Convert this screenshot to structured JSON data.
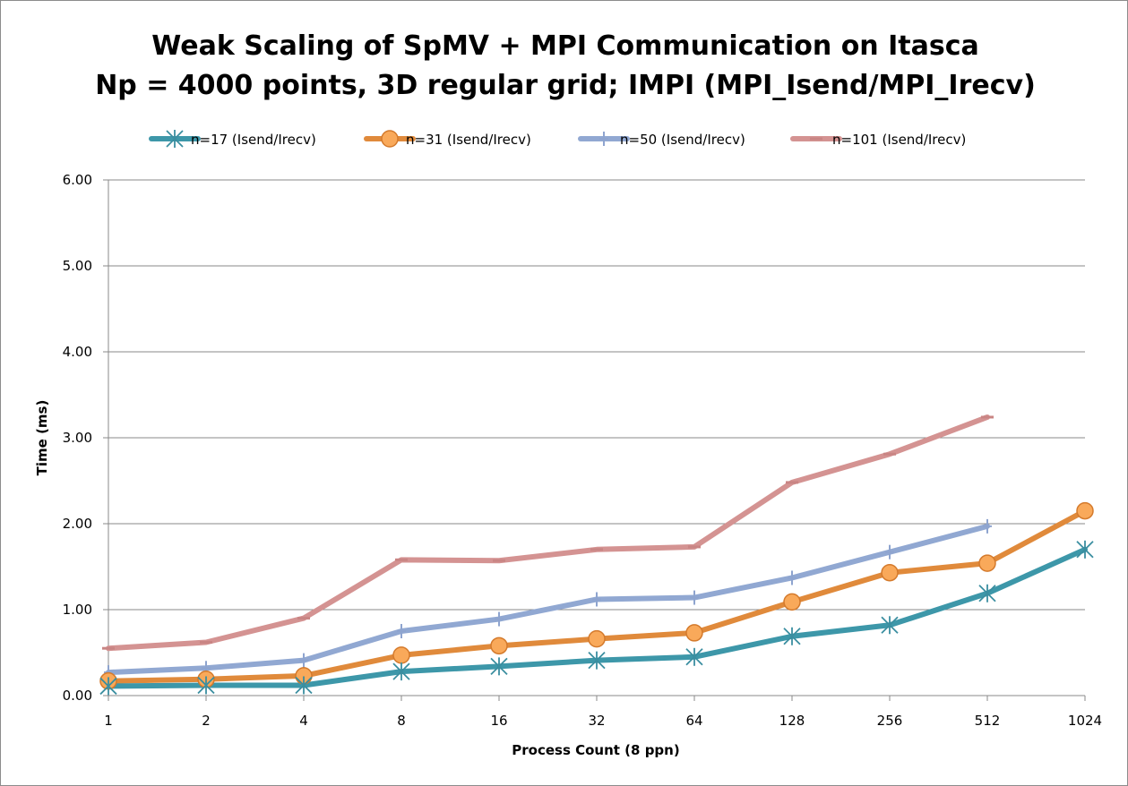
{
  "chart_data": {
    "type": "line",
    "title_lines": [
      "Weak Scaling of SpMV + MPI Communication on Itasca",
      "Np = 4000 points, 3D regular grid; IMPI (MPI_Isend/MPI_Irecv)"
    ],
    "xlabel": "Process Count (8 ppn)",
    "ylabel": "Time (ms)",
    "categories": [
      "1",
      "2",
      "4",
      "8",
      "16",
      "32",
      "64",
      "128",
      "256",
      "512",
      "1024"
    ],
    "ylim": [
      0,
      6
    ],
    "yticks": [
      0,
      1,
      2,
      3,
      4,
      5,
      6
    ],
    "ytick_labels": [
      "0.00",
      "1.00",
      "2.00",
      "3.00",
      "4.00",
      "5.00",
      "6.00"
    ],
    "grid": "horizontal",
    "legend_position": "top",
    "series": [
      {
        "name": "n=17 (Isend/Irecv)",
        "color": "#3d97a9",
        "marker": "asterisk",
        "values": [
          0.11,
          0.12,
          0.12,
          0.28,
          0.34,
          0.41,
          0.45,
          0.69,
          0.82,
          1.19,
          1.7
        ]
      },
      {
        "name": "n=31 (Isend/Irecv)",
        "color": "#e08a3b",
        "marker": "circle",
        "values": [
          0.17,
          0.19,
          0.23,
          0.47,
          0.58,
          0.66,
          0.73,
          1.09,
          1.43,
          1.54,
          2.15
        ]
      },
      {
        "name": "n=50 (Isend/Irecv)",
        "color": "#91a8d2",
        "marker": "plus",
        "values": [
          0.27,
          0.32,
          0.41,
          0.75,
          0.89,
          1.12,
          1.14,
          1.37,
          1.67,
          1.97,
          null
        ]
      },
      {
        "name": "n=101 (Isend/Irecv)",
        "color": "#d49392",
        "marker": "dash",
        "values": [
          0.55,
          0.62,
          0.9,
          1.58,
          1.57,
          1.7,
          1.73,
          2.48,
          2.81,
          3.24,
          null
        ]
      }
    ]
  }
}
